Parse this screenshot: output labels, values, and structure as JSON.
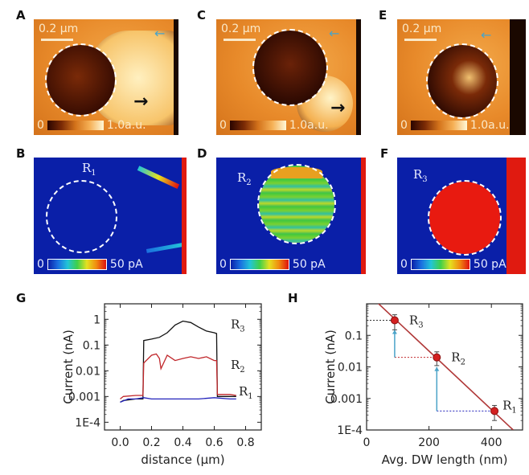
{
  "panels": {
    "A": {
      "label": "A",
      "scale": "0.2 µm",
      "cbar_min": "0",
      "cbar_max": "1.0a.u."
    },
    "C": {
      "label": "C",
      "scale": "0.2 µm",
      "cbar_min": "0",
      "cbar_max": "1.0a.u."
    },
    "E": {
      "label": "E",
      "scale": "0.2 µm",
      "cbar_min": "0",
      "cbar_max": "1.0a.u."
    },
    "B": {
      "label": "B",
      "region": "R",
      "region_sub": "1",
      "cbar_min": "0",
      "cbar_max": "50  pA"
    },
    "D": {
      "label": "D",
      "region": "R",
      "region_sub": "2",
      "cbar_min": "0",
      "cbar_max": "50  pA"
    },
    "F": {
      "label": "F",
      "region": "R",
      "region_sub": "3",
      "cbar_min": "0",
      "cbar_max": "50  pA"
    },
    "G": {
      "label": "G"
    },
    "H": {
      "label": "H"
    }
  },
  "colors": {
    "R1": "#2222bb",
    "R2": "#c0262a",
    "R3": "#111111",
    "fit": "#b03838",
    "arrow_blue": "#4aa3c8",
    "point": "#d42020"
  },
  "chart_data": [
    {
      "id": "G",
      "type": "line",
      "title": "",
      "xlabel": "distance (µm)",
      "ylabel": "Current (nA)",
      "yscale": "log",
      "xlim": [
        -0.1,
        0.9
      ],
      "ylim": [
        5e-05,
        4
      ],
      "xticks": [
        0.0,
        0.2,
        0.4,
        0.6,
        0.8
      ],
      "xtick_labels": [
        "0.0",
        "0.2",
        "0.4",
        "0.6",
        "0.8"
      ],
      "yticks": [
        1,
        0.1,
        0.01,
        0.001,
        0.0001
      ],
      "ytick_labels": [
        "1",
        "0.1",
        "0.01",
        "0.001",
        "1E-4"
      ],
      "series": [
        {
          "name": "R3",
          "label": "R",
          "sub": "3",
          "x": [
            0.0,
            0.02,
            0.1,
            0.145,
            0.15,
            0.2,
            0.25,
            0.3,
            0.35,
            0.4,
            0.45,
            0.5,
            0.55,
            0.6,
            0.615,
            0.62,
            0.7,
            0.74
          ],
          "y": [
            0.0006,
            0.0007,
            0.0008,
            0.0008,
            0.15,
            0.17,
            0.2,
            0.3,
            0.6,
            0.85,
            0.75,
            0.5,
            0.35,
            0.3,
            0.28,
            0.001,
            0.001,
            0.001
          ]
        },
        {
          "name": "R2",
          "label": "R",
          "sub": "2",
          "x": [
            0.0,
            0.02,
            0.1,
            0.145,
            0.15,
            0.2,
            0.23,
            0.25,
            0.26,
            0.3,
            0.35,
            0.4,
            0.45,
            0.5,
            0.55,
            0.6,
            0.615,
            0.62,
            0.7,
            0.74
          ],
          "y": [
            0.0008,
            0.001,
            0.0011,
            0.0011,
            0.02,
            0.04,
            0.045,
            0.03,
            0.012,
            0.04,
            0.025,
            0.03,
            0.035,
            0.03,
            0.035,
            0.025,
            0.025,
            0.0012,
            0.0012,
            0.0011
          ]
        },
        {
          "name": "R1",
          "label": "R",
          "sub": "1",
          "x": [
            0.0,
            0.05,
            0.1,
            0.15,
            0.2,
            0.3,
            0.4,
            0.5,
            0.6,
            0.7,
            0.74
          ],
          "y": [
            0.0006,
            0.0008,
            0.0008,
            0.0009,
            0.0008,
            0.0008,
            0.0008,
            0.0008,
            0.0009,
            0.0008,
            0.0008
          ]
        }
      ]
    },
    {
      "id": "H",
      "type": "scatter",
      "title": "",
      "xlabel": "Avg. DW length (nm)",
      "ylabel": "Current (nA)",
      "yscale": "log",
      "xlim": [
        0,
        500
      ],
      "ylim": [
        0.0001,
        1
      ],
      "xticks": [
        0,
        200,
        400
      ],
      "xtick_labels": [
        "0",
        "200",
        "400"
      ],
      "yticks": [
        0.1,
        0.01,
        0.001,
        0.0001
      ],
      "ytick_labels": [
        "0.1",
        "0.01",
        "0.001",
        "1E-4"
      ],
      "points": [
        {
          "name": "R3",
          "label": "R",
          "sub": "3",
          "x": 90,
          "y": 0.3,
          "err_low": 0.15,
          "err_high": 0.45
        },
        {
          "name": "R2",
          "label": "R",
          "sub": "2",
          "x": 225,
          "y": 0.02,
          "err_low": 0.011,
          "err_high": 0.03
        },
        {
          "name": "R1",
          "label": "R",
          "sub": "1",
          "x": 410,
          "y": 0.0004,
          "err_low": 0.0002,
          "err_high": 0.0006
        }
      ],
      "fit_line": {
        "x": [
          30,
          470
        ],
        "y": [
          1.2,
          0.0001
        ]
      }
    }
  ]
}
